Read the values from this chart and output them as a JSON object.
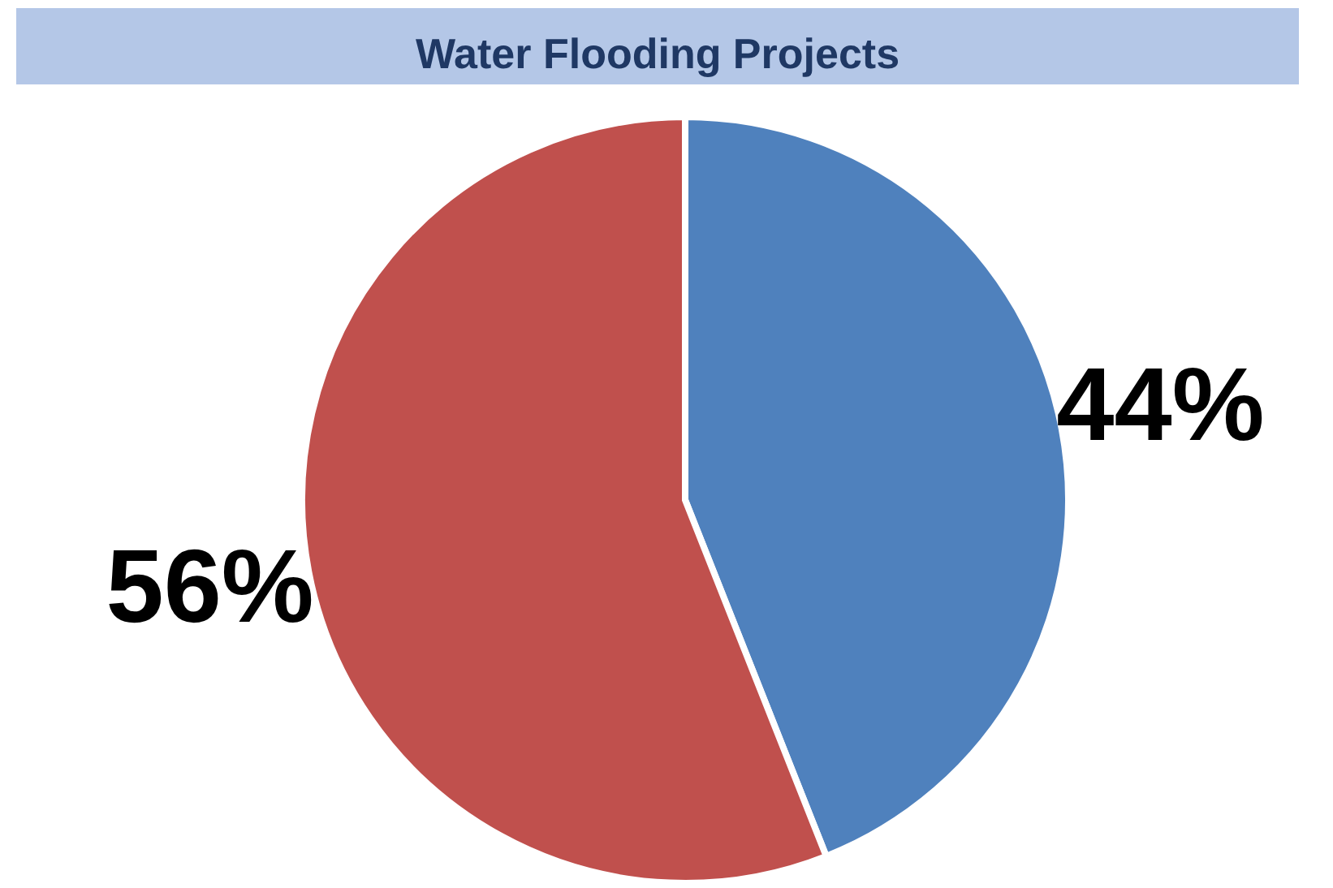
{
  "chart_data": {
    "type": "pie",
    "title": "Water Flooding Projects",
    "categories": [
      null,
      null
    ],
    "values": [
      44,
      56
    ],
    "colors": [
      "#4f81bd",
      "#c0504d"
    ],
    "value_labels": [
      "44%",
      "56%"
    ]
  }
}
